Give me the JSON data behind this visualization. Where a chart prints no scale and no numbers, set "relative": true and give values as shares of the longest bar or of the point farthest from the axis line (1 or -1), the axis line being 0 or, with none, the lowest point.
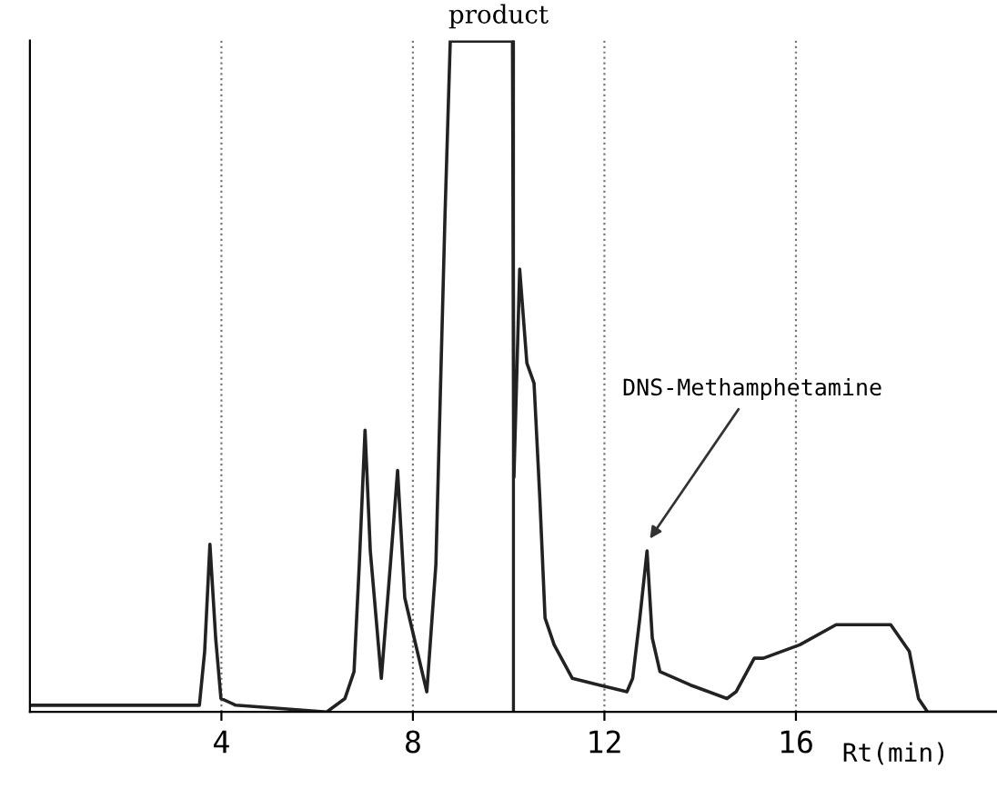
{
  "chart_data": {
    "type": "line",
    "title": "product",
    "xlabel": "Rt(min)",
    "relative": true,
    "x": [
      0,
      1.63,
      3.16,
      3.54,
      3.65,
      3.76,
      3.88,
      3.99,
      4.3,
      6.2,
      6.58,
      6.77,
      6.88,
      7.0,
      7.11,
      7.34,
      7.53,
      7.68,
      7.83,
      8.29,
      8.48,
      8.67,
      8.78,
      10.08,
      10.11,
      10.23,
      10.38,
      10.53,
      10.65,
      10.76,
      10.95,
      11.33,
      11.9,
      12.47,
      12.59,
      12.74,
      12.89,
      13.0,
      13.16,
      13.8,
      14.56,
      14.75,
      15.13,
      15.32,
      16.08,
      16.84,
      17.22,
      17.98,
      18.37,
      18.56,
      18.75,
      20.19
    ],
    "series": [
      {
        "color": "#222222",
        "values": [
          0.01,
          0.01,
          0.01,
          0.01,
          0.09,
          0.25,
          0.11,
          0.02,
          0.01,
          0.0,
          0.02,
          0.06,
          0.22,
          0.42,
          0.24,
          0.05,
          0.22,
          0.36,
          0.17,
          0.03,
          0.22,
          0.74,
          1,
          1,
          0.35,
          0.66,
          0.52,
          0.49,
          0.32,
          0.14,
          0.1,
          0.05,
          0.04,
          0.03,
          0.05,
          0.14,
          0.24,
          0.11,
          0.06,
          0.04,
          0.02,
          0.03,
          0.08,
          0.08,
          0.1,
          0.13,
          0.13,
          0.13,
          0.09,
          0.02,
          0.0,
          0.0
        ]
      }
    ],
    "xlim": [
      0,
      20.2
    ],
    "xticks": [
      4,
      8,
      12,
      16
    ],
    "grid": "x",
    "ref_lines": [
      {
        "axis": "x",
        "value": 10.1,
        "color": "#222222"
      }
    ],
    "annotations": [
      {
        "text": "DNS-Methamphetamine",
        "x": 12.89,
        "y": 0.24
      }
    ]
  }
}
